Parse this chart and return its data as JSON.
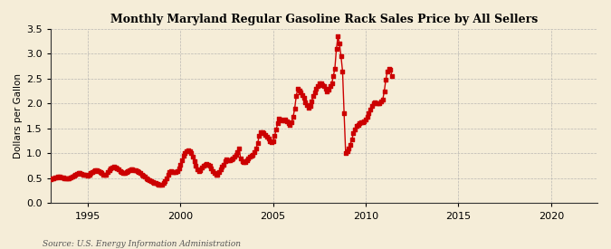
{
  "title": "Monthly Maryland Regular Gasoline Rack Sales Price by All Sellers",
  "ylabel": "Dollars per Gallon",
  "source": "Source: U.S. Energy Information Administration",
  "background_color": "#F5EDD8",
  "plot_bg_color": "#F5EDD8",
  "line_color": "#CC0000",
  "dot_color": "#CC0000",
  "dot_size": 5,
  "line_width": 1.0,
  "xlim": [
    1993.0,
    2022.5
  ],
  "ylim": [
    0.0,
    3.5
  ],
  "yticks": [
    0.0,
    0.5,
    1.0,
    1.5,
    2.0,
    2.5,
    3.0,
    3.5
  ],
  "xticks": [
    1995,
    2000,
    2005,
    2010,
    2015,
    2020
  ],
  "data": {
    "dates": [
      1993.0,
      1993.083,
      1993.167,
      1993.25,
      1993.333,
      1993.417,
      1993.5,
      1993.583,
      1993.667,
      1993.75,
      1993.833,
      1993.917,
      1994.0,
      1994.083,
      1994.167,
      1994.25,
      1994.333,
      1994.417,
      1994.5,
      1994.583,
      1994.667,
      1994.75,
      1994.833,
      1994.917,
      1995.0,
      1995.083,
      1995.167,
      1995.25,
      1995.333,
      1995.417,
      1995.5,
      1995.583,
      1995.667,
      1995.75,
      1995.833,
      1995.917,
      1996.0,
      1996.083,
      1996.167,
      1996.25,
      1996.333,
      1996.417,
      1996.5,
      1996.583,
      1996.667,
      1996.75,
      1996.833,
      1996.917,
      1997.0,
      1997.083,
      1997.167,
      1997.25,
      1997.333,
      1997.417,
      1997.5,
      1997.583,
      1997.667,
      1997.75,
      1997.833,
      1997.917,
      1998.0,
      1998.083,
      1998.167,
      1998.25,
      1998.333,
      1998.417,
      1998.5,
      1998.583,
      1998.667,
      1998.75,
      1998.833,
      1998.917,
      1999.0,
      1999.083,
      1999.167,
      1999.25,
      1999.333,
      1999.417,
      1999.5,
      1999.583,
      1999.667,
      1999.75,
      1999.833,
      1999.917,
      2000.0,
      2000.083,
      2000.167,
      2000.25,
      2000.333,
      2000.417,
      2000.5,
      2000.583,
      2000.667,
      2000.75,
      2000.833,
      2000.917,
      2001.0,
      2001.083,
      2001.167,
      2001.25,
      2001.333,
      2001.417,
      2001.5,
      2001.583,
      2001.667,
      2001.75,
      2001.833,
      2001.917,
      2002.0,
      2002.083,
      2002.167,
      2002.25,
      2002.333,
      2002.417,
      2002.5,
      2002.583,
      2002.667,
      2002.75,
      2002.833,
      2002.917,
      2003.0,
      2003.083,
      2003.167,
      2003.25,
      2003.333,
      2003.417,
      2003.5,
      2003.583,
      2003.667,
      2003.75,
      2003.833,
      2003.917,
      2004.0,
      2004.083,
      2004.167,
      2004.25,
      2004.333,
      2004.417,
      2004.5,
      2004.583,
      2004.667,
      2004.75,
      2004.833,
      2004.917,
      2005.0,
      2005.083,
      2005.167,
      2005.25,
      2005.333,
      2005.417,
      2005.5,
      2005.583,
      2005.667,
      2005.75,
      2005.833,
      2005.917,
      2006.0,
      2006.083,
      2006.167,
      2006.25,
      2006.333,
      2006.417,
      2006.5,
      2006.583,
      2006.667,
      2006.75,
      2006.833,
      2006.917,
      2007.0,
      2007.083,
      2007.167,
      2007.25,
      2007.333,
      2007.417,
      2007.5,
      2007.583,
      2007.667,
      2007.75,
      2007.833,
      2007.917,
      2008.0,
      2008.083,
      2008.167,
      2008.25,
      2008.333,
      2008.417,
      2008.5,
      2008.583,
      2008.667,
      2008.75,
      2008.833,
      2008.917,
      2009.0,
      2009.083,
      2009.167,
      2009.25,
      2009.333,
      2009.417,
      2009.5,
      2009.583,
      2009.667,
      2009.75,
      2009.833,
      2009.917,
      2010.0,
      2010.083,
      2010.167,
      2010.25,
      2010.333,
      2010.417,
      2010.5,
      2010.583,
      2010.667,
      2010.75,
      2010.833,
      2010.917,
      2011.0,
      2011.083,
      2011.167,
      2011.25,
      2011.333,
      2011.417
    ],
    "prices": [
      0.49,
      0.5,
      0.5,
      0.51,
      0.52,
      0.53,
      0.53,
      0.52,
      0.51,
      0.5,
      0.5,
      0.5,
      0.5,
      0.52,
      0.54,
      0.56,
      0.58,
      0.59,
      0.6,
      0.6,
      0.59,
      0.58,
      0.57,
      0.57,
      0.55,
      0.57,
      0.6,
      0.63,
      0.65,
      0.67,
      0.66,
      0.64,
      0.62,
      0.6,
      0.58,
      0.57,
      0.58,
      0.62,
      0.66,
      0.7,
      0.72,
      0.73,
      0.72,
      0.7,
      0.68,
      0.65,
      0.62,
      0.6,
      0.61,
      0.63,
      0.65,
      0.67,
      0.68,
      0.68,
      0.67,
      0.66,
      0.64,
      0.62,
      0.6,
      0.57,
      0.55,
      0.53,
      0.5,
      0.48,
      0.46,
      0.44,
      0.42,
      0.41,
      0.4,
      0.39,
      0.38,
      0.38,
      0.37,
      0.4,
      0.44,
      0.5,
      0.57,
      0.62,
      0.65,
      0.63,
      0.62,
      0.63,
      0.65,
      0.7,
      0.78,
      0.87,
      0.95,
      1.0,
      1.04,
      1.06,
      1.05,
      1.0,
      0.93,
      0.85,
      0.75,
      0.68,
      0.65,
      0.67,
      0.72,
      0.75,
      0.78,
      0.79,
      0.78,
      0.75,
      0.7,
      0.65,
      0.6,
      0.57,
      0.57,
      0.62,
      0.68,
      0.73,
      0.78,
      0.85,
      0.88,
      0.87,
      0.86,
      0.88,
      0.9,
      0.93,
      0.97,
      1.03,
      1.1,
      0.9,
      0.85,
      0.83,
      0.83,
      0.87,
      0.9,
      0.93,
      0.95,
      0.97,
      1.02,
      1.1,
      1.2,
      1.35,
      1.42,
      1.43,
      1.4,
      1.37,
      1.34,
      1.3,
      1.25,
      1.22,
      1.24,
      1.35,
      1.48,
      1.6,
      1.7,
      1.68,
      1.66,
      1.67,
      1.68,
      1.65,
      1.6,
      1.57,
      1.63,
      1.73,
      1.9,
      2.15,
      2.3,
      2.27,
      2.22,
      2.18,
      2.12,
      2.03,
      1.97,
      1.92,
      1.96,
      2.05,
      2.15,
      2.22,
      2.3,
      2.35,
      2.4,
      2.4,
      2.38,
      2.35,
      2.3,
      2.25,
      2.28,
      2.35,
      2.4,
      2.55,
      2.7,
      3.1,
      3.35,
      3.2,
      2.95,
      2.65,
      1.8,
      1.0,
      1.05,
      1.1,
      1.18,
      1.28,
      1.4,
      1.48,
      1.55,
      1.58,
      1.6,
      1.62,
      1.63,
      1.65,
      1.68,
      1.73,
      1.8,
      1.88,
      1.96,
      2.0,
      2.02,
      2.0,
      2.0,
      2.01,
      2.05,
      2.08,
      2.25,
      2.48,
      2.65,
      2.7,
      2.68,
      2.55
    ]
  }
}
